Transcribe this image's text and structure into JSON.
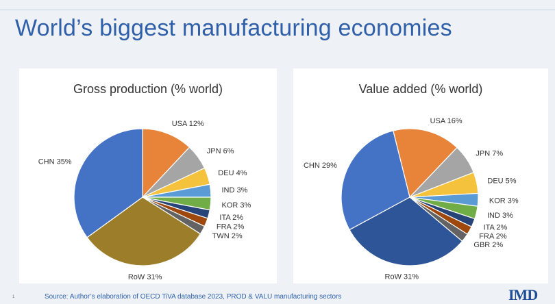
{
  "slide": {
    "title": "World’s biggest manufacturing economies",
    "page_number": "1",
    "source": "Source: Author’s elaboration of OECD    TiVA database 2023, PROD & VALU manufacturing sectors",
    "logo": "IMD"
  },
  "chart_data": [
    {
      "type": "pie",
      "title": "Gross production  (% world)",
      "slices": [
        {
          "label": "USA 12%",
          "value": 12,
          "color": "#e8833a"
        },
        {
          "label": "JPN 6%",
          "value": 6,
          "color": "#a5a5a5"
        },
        {
          "label": "DEU 4%",
          "value": 4,
          "color": "#f5c23e"
        },
        {
          "label": "IND 3%",
          "value": 3,
          "color": "#5b9bd5"
        },
        {
          "label": "KOR 3%",
          "value": 3,
          "color": "#70ad47"
        },
        {
          "label": "ITA 2%",
          "value": 2,
          "color": "#264478"
        },
        {
          "label": "FRA 2%",
          "value": 2,
          "color": "#9e480e"
        },
        {
          "label": "TWN 2%",
          "value": 2,
          "color": "#636363"
        },
        {
          "label": "RoW 31%",
          "value": 31,
          "color": "#9c7e2a"
        },
        {
          "label": "CHN 35%",
          "value": 35,
          "color": "#4472c4"
        }
      ]
    },
    {
      "type": "pie",
      "title": "Value added (% world)",
      "slices": [
        {
          "label": "USA 16%",
          "value": 16,
          "color": "#e8833a"
        },
        {
          "label": "JPN 7%",
          "value": 7,
          "color": "#a5a5a5"
        },
        {
          "label": "DEU 5%",
          "value": 5,
          "color": "#f5c23e"
        },
        {
          "label": "KOR 3%",
          "value": 3,
          "color": "#5b9bd5"
        },
        {
          "label": "IND 3%",
          "value": 3,
          "color": "#70ad47"
        },
        {
          "label": "ITA 2%",
          "value": 2,
          "color": "#264478"
        },
        {
          "label": "FRA 2%",
          "value": 2,
          "color": "#9e480e"
        },
        {
          "label": "GBR 2%",
          "value": 2,
          "color": "#636363"
        },
        {
          "label": "RoW 31%",
          "value": 31,
          "color": "#2e5597"
        },
        {
          "label": "CHN 29%",
          "value": 29,
          "color": "#4472c4"
        }
      ]
    }
  ]
}
